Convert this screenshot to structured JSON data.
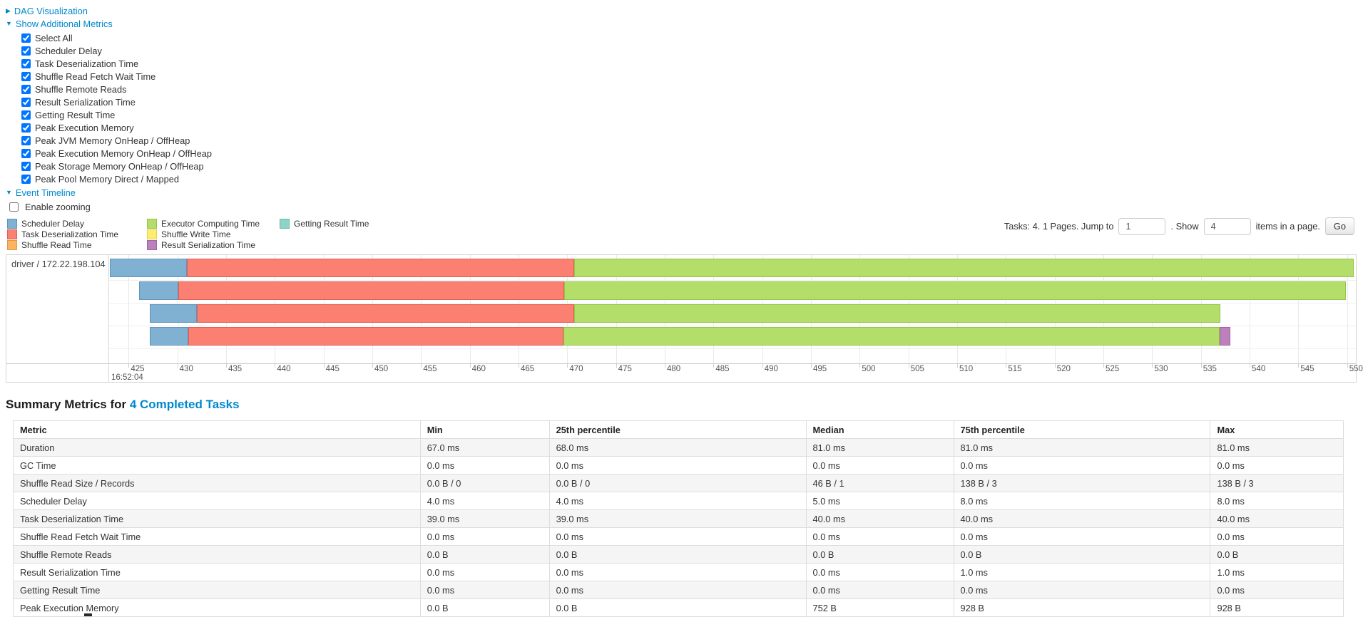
{
  "icons": {
    "caret_right": "▶",
    "caret_down": "▼"
  },
  "controls": {
    "dag_label": "DAG Visualization",
    "metrics_label": "Show Additional Metrics",
    "metrics_items": [
      {
        "label": "Select All",
        "checked": true
      },
      {
        "label": "Scheduler Delay",
        "checked": true
      },
      {
        "label": "Task Deserialization Time",
        "checked": true
      },
      {
        "label": "Shuffle Read Fetch Wait Time",
        "checked": true
      },
      {
        "label": "Shuffle Remote Reads",
        "checked": true
      },
      {
        "label": "Result Serialization Time",
        "checked": true
      },
      {
        "label": "Getting Result Time",
        "checked": true
      },
      {
        "label": "Peak Execution Memory",
        "checked": true
      },
      {
        "label": "Peak JVM Memory OnHeap / OffHeap",
        "checked": true
      },
      {
        "label": "Peak Execution Memory OnHeap / OffHeap",
        "checked": true
      },
      {
        "label": "Peak Storage Memory OnHeap / OffHeap",
        "checked": true
      },
      {
        "label": "Peak Pool Memory Direct / Mapped",
        "checked": true
      }
    ],
    "event_timeline_label": "Event Timeline",
    "enable_zooming": {
      "label": "Enable zooming",
      "checked": false
    }
  },
  "legend": {
    "columns": [
      [
        {
          "key": "scheduler_delay",
          "label": "Scheduler Delay",
          "color": "#80B1D3",
          "border": "#5f94bd"
        },
        {
          "key": "task_deserialization",
          "label": "Task Deserialization Time",
          "color": "#FB8072",
          "border": "#e05f52"
        },
        {
          "key": "shuffle_read",
          "label": "Shuffle Read Time",
          "color": "#FDB462",
          "border": "#e09a43"
        }
      ],
      [
        {
          "key": "executor_computing",
          "label": "Executor Computing Time",
          "color": "#B3DE69",
          "border": "#97c348"
        },
        {
          "key": "shuffle_write",
          "label": "Shuffle Write Time",
          "color": "#FFED6F",
          "border": "#e3d050"
        },
        {
          "key": "result_serialization",
          "label": "Result Serialization Time",
          "color": "#BC80BD",
          "border": "#a164a3"
        }
      ],
      [
        {
          "key": "getting_result",
          "label": "Getting Result Time",
          "color": "#8DD3C7",
          "border": "#6fb8ab"
        }
      ]
    ]
  },
  "pagination": {
    "tasks_text": "Tasks: 4. 1 Pages. Jump to",
    "jump_value": "1",
    "show_text": ". Show",
    "show_value": "4",
    "items_text": "items in a page.",
    "go_label": "Go"
  },
  "chart_data": {
    "type": "timeline",
    "executor_label": "driver / 172.22.198.104",
    "axis": {
      "start": 423.0,
      "end": 550.9,
      "tick_start": 425,
      "tick_step": 5,
      "tick_end": 550,
      "time_label": "16:52:04",
      "unit": "ms within 16:52:04"
    },
    "tasks": [
      {
        "segments": [
          {
            "key": "scheduler_delay",
            "start": 423.1,
            "end": 431.0
          },
          {
            "key": "task_deserialization",
            "start": 431.0,
            "end": 470.7
          },
          {
            "key": "executor_computing",
            "start": 470.7,
            "end": 550.7
          }
        ]
      },
      {
        "segments": [
          {
            "key": "scheduler_delay",
            "start": 426.1,
            "end": 430.1
          },
          {
            "key": "task_deserialization",
            "start": 430.1,
            "end": 469.7
          },
          {
            "key": "executor_computing",
            "start": 469.7,
            "end": 549.9
          }
        ]
      },
      {
        "segments": [
          {
            "key": "scheduler_delay",
            "start": 427.2,
            "end": 432.0
          },
          {
            "key": "task_deserialization",
            "start": 432.0,
            "end": 470.7
          },
          {
            "key": "executor_computing",
            "start": 470.7,
            "end": 537.0
          }
        ]
      },
      {
        "segments": [
          {
            "key": "scheduler_delay",
            "start": 427.2,
            "end": 431.1
          },
          {
            "key": "task_deserialization",
            "start": 431.1,
            "end": 469.6
          },
          {
            "key": "executor_computing",
            "start": 469.6,
            "end": 536.9
          },
          {
            "key": "result_serialization",
            "start": 536.9,
            "end": 538.0
          }
        ]
      }
    ]
  },
  "summary": {
    "title_prefix": "Summary Metrics for ",
    "title_link": "4 Completed Tasks",
    "table": {
      "headers": [
        "Metric",
        "Min",
        "25th percentile",
        "Median",
        "75th percentile",
        "Max"
      ],
      "rows": [
        {
          "metric": "Duration",
          "values": [
            "67.0 ms",
            "68.0 ms",
            "81.0 ms",
            "81.0 ms",
            "81.0 ms"
          ]
        },
        {
          "metric": "GC Time",
          "values": [
            "0.0 ms",
            "0.0 ms",
            "0.0 ms",
            "0.0 ms",
            "0.0 ms"
          ]
        },
        {
          "metric": "Shuffle Read Size / Records",
          "values": [
            "0.0 B / 0",
            "0.0 B / 0",
            "46 B / 1",
            "138 B / 3",
            "138 B / 3"
          ]
        },
        {
          "metric": "Scheduler Delay",
          "values": [
            "4.0 ms",
            "4.0 ms",
            "5.0 ms",
            "8.0 ms",
            "8.0 ms"
          ]
        },
        {
          "metric": "Task Deserialization Time",
          "values": [
            "39.0 ms",
            "39.0 ms",
            "40.0 ms",
            "40.0 ms",
            "40.0 ms"
          ]
        },
        {
          "metric": "Shuffle Read Fetch Wait Time",
          "values": [
            "0.0 ms",
            "0.0 ms",
            "0.0 ms",
            "0.0 ms",
            "0.0 ms"
          ]
        },
        {
          "metric": "Shuffle Remote Reads",
          "values": [
            "0.0 B",
            "0.0 B",
            "0.0 B",
            "0.0 B",
            "0.0 B"
          ]
        },
        {
          "metric": "Result Serialization Time",
          "values": [
            "0.0 ms",
            "0.0 ms",
            "0.0 ms",
            "1.0 ms",
            "1.0 ms"
          ]
        },
        {
          "metric": "Getting Result Time",
          "values": [
            "0.0 ms",
            "0.0 ms",
            "0.0 ms",
            "0.0 ms",
            "0.0 ms"
          ]
        },
        {
          "metric": "Peak Execution Memory",
          "values": [
            "0.0 B",
            "0.0 B",
            "752 B",
            "928 B",
            "928 B"
          ]
        }
      ]
    }
  }
}
